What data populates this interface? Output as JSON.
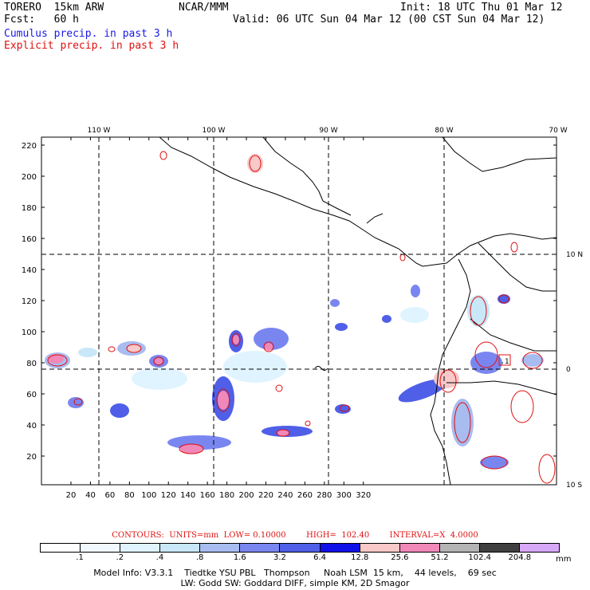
{
  "header": {
    "model_name": "TORERO  15km ARW",
    "org": "NCAR/MMM",
    "init": "Init: 18 UTC Thu 01 Mar 12",
    "fcst": "Fcst:   60 h",
    "valid": "Valid: 06 UTC Sun 04 Mar 12 (00 CST Sun 04 Mar 12)",
    "cumulus": "Cumulus precip. in past 3 h",
    "explicit": "Explicit precip. in past 3 h"
  },
  "colors": {
    "cumulus_text": "#1a1ae6",
    "explicit_text": "#e01010",
    "contour": "#e01010",
    "coast": "#000000"
  },
  "axes": {
    "x_ticks": [
      "20",
      "40",
      "60",
      "80",
      "100",
      "120",
      "140",
      "160",
      "180",
      "200",
      "220",
      "240",
      "260",
      "280",
      "300",
      "320"
    ],
    "y_ticks": [
      "20",
      "40",
      "60",
      "80",
      "100",
      "120",
      "140",
      "160",
      "180",
      "200",
      "220"
    ],
    "lon_labels": [
      "110 W",
      "100 W",
      "90 W",
      "80 W",
      "70 W"
    ],
    "lat_labels": [
      "10 N",
      "0",
      "10 S"
    ]
  },
  "map": {
    "box_label": ".1"
  },
  "contour_info": {
    "label": "CONTOURS:",
    "units": "UNITS=mm",
    "low": "LOW= 0.10000",
    "high": "HIGH=  102.40",
    "interval": "INTERVAL=X  4.0000"
  },
  "legend": {
    "values": [
      ".1",
      ".2",
      ".4",
      ".8",
      "1.6",
      "3.2",
      "6.4",
      "12.8",
      "25.6",
      "51.2",
      "102.4",
      "204.8"
    ],
    "colors": [
      "#ffffff",
      "#f2f8ff",
      "#e0f4ff",
      "#c8e8f8",
      "#a8bcf0",
      "#7a86f0",
      "#4f5fe8",
      "#1010e8",
      "#f9c8c8",
      "#f088b8",
      "#b4b4b4",
      "#404040",
      "#d8a8f8"
    ],
    "unit": "mm"
  },
  "footer": {
    "line1": "Model Info: V3.3.1    Tiedtke YSU PBL   Thompson     Noah LSM  15 km,    44 levels,    69 sec",
    "line2": "LW: Godd SW: Goddard DIFF, simple KM, 2D Smagor"
  }
}
